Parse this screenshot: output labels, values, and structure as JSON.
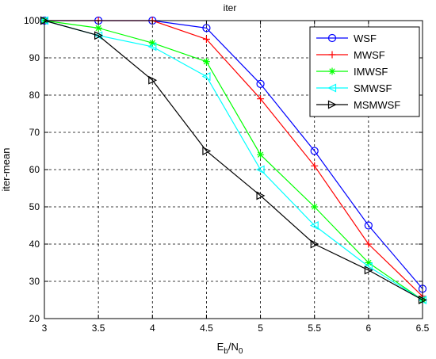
{
  "chart_data": {
    "type": "line",
    "title": "iter",
    "xlabel_main": "E",
    "xlabel_sub1": "b",
    "xlabel_sep": "/N",
    "xlabel_sub2": "0",
    "ylabel": "iter-mean",
    "x": [
      3,
      3.5,
      4,
      4.5,
      5,
      5.5,
      6,
      6.5
    ],
    "xticks": [
      "3",
      "3.5",
      "4",
      "4.5",
      "5",
      "5.5",
      "6",
      "6.5"
    ],
    "yticks": [
      "20",
      "30",
      "40",
      "50",
      "60",
      "70",
      "80",
      "90",
      "100"
    ],
    "xlim": [
      3,
      6.5
    ],
    "ylim": [
      20,
      100
    ],
    "grid": true,
    "legend_position": "top-right",
    "series": [
      {
        "name": "WSF",
        "color": "#0000ff",
        "marker": "circle",
        "values": [
          100,
          100,
          100,
          98,
          83,
          65,
          45,
          28
        ]
      },
      {
        "name": "MWSF",
        "color": "#ff0000",
        "marker": "plus",
        "values": [
          100,
          100,
          100,
          95,
          79,
          61,
          40,
          26
        ]
      },
      {
        "name": "IMWSF",
        "color": "#00ff00",
        "marker": "asterisk",
        "values": [
          100,
          98,
          94,
          89,
          64,
          50,
          35,
          25
        ]
      },
      {
        "name": "SMWSF",
        "color": "#00ffff",
        "marker": "triangle-left",
        "values": [
          100,
          96,
          93,
          85,
          60,
          45,
          34,
          25
        ]
      },
      {
        "name": "MSMWSF",
        "color": "#000000",
        "marker": "triangle-right",
        "values": [
          100,
          96,
          84,
          65,
          53,
          40,
          33,
          25
        ]
      }
    ]
  }
}
